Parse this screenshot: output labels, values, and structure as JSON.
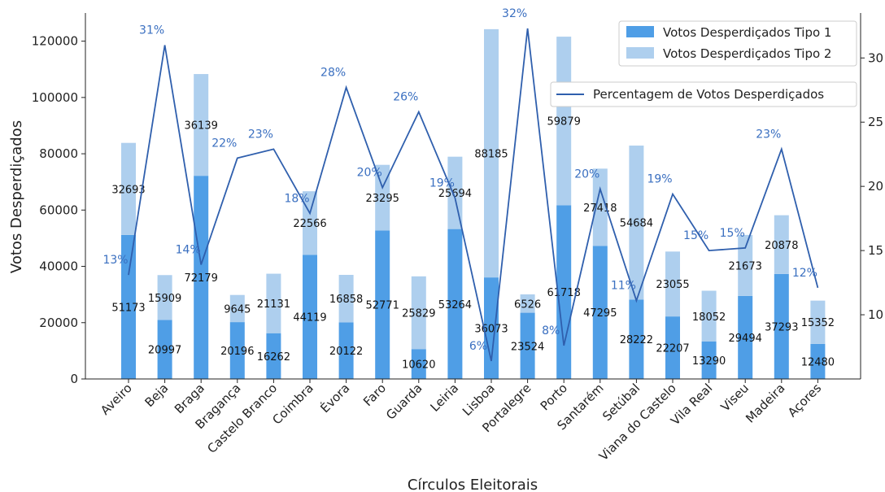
{
  "chart_data": {
    "type": "bar",
    "xlabel": "Círculos Eleitorais",
    "ylabel": "Votos Desperdiçados",
    "ylim": [
      0,
      130000
    ],
    "y2lim": [
      5,
      33.5
    ],
    "yticks": [
      0,
      20000,
      40000,
      60000,
      80000,
      100000,
      120000
    ],
    "y2ticks": [
      10,
      15,
      20,
      25,
      30
    ],
    "categories": [
      "Aveiro",
      "Beja",
      "Braga",
      "Bragança",
      "Castelo Branco",
      "Coimbra",
      "Évora",
      "Faro",
      "Guarda",
      "Leiria",
      "Lisboa",
      "Portalegre",
      "Porto",
      "Santarém",
      "Setúbal",
      "Viana do Castelo",
      "Vila Real",
      "Viseu",
      "Madeira",
      "Açores"
    ],
    "series": [
      {
        "name": "Votos Desperdiçados Tipo 1",
        "color": "#4f9ee6",
        "values": [
          51173,
          20997,
          72179,
          20196,
          16262,
          44119,
          20122,
          52771,
          10620,
          53264,
          36073,
          23524,
          61718,
          47295,
          28222,
          22207,
          13290,
          29494,
          37293,
          12480
        ]
      },
      {
        "name": "Votos Desperdiçados Tipo 2",
        "color": "#aecfee",
        "values": [
          32693,
          15909,
          36139,
          9645,
          21131,
          22566,
          16858,
          23295,
          25829,
          25694,
          88185,
          6526,
          59879,
          27418,
          54684,
          23055,
          18052,
          21673,
          20878,
          15352
        ]
      },
      {
        "name": "Percentagem de Votos Desperdiçados",
        "color": "#2f5fad",
        "axis": "right",
        "values": [
          13.1,
          31.0,
          13.9,
          22.2,
          22.9,
          17.9,
          27.7,
          19.9,
          25.8,
          19.1,
          6.4,
          32.3,
          7.6,
          19.8,
          11.1,
          19.4,
          15.0,
          15.2,
          22.9,
          12.1
        ],
        "labels": [
          "13%",
          "31%",
          "14%",
          "22%",
          "23%",
          "18%",
          "28%",
          "20%",
          "26%",
          "19%",
          "6%",
          "32%",
          "8%",
          "20%",
          "11%",
          "19%",
          "15%",
          "15%",
          "23%",
          "12%"
        ]
      }
    ],
    "legend": [
      "Votos Desperdiçados Tipo 1",
      "Votos Desperdiçados Tipo 2",
      "Percentagem de Votos Desperdiçados"
    ],
    "legend_position": "top-right",
    "grid": false
  }
}
